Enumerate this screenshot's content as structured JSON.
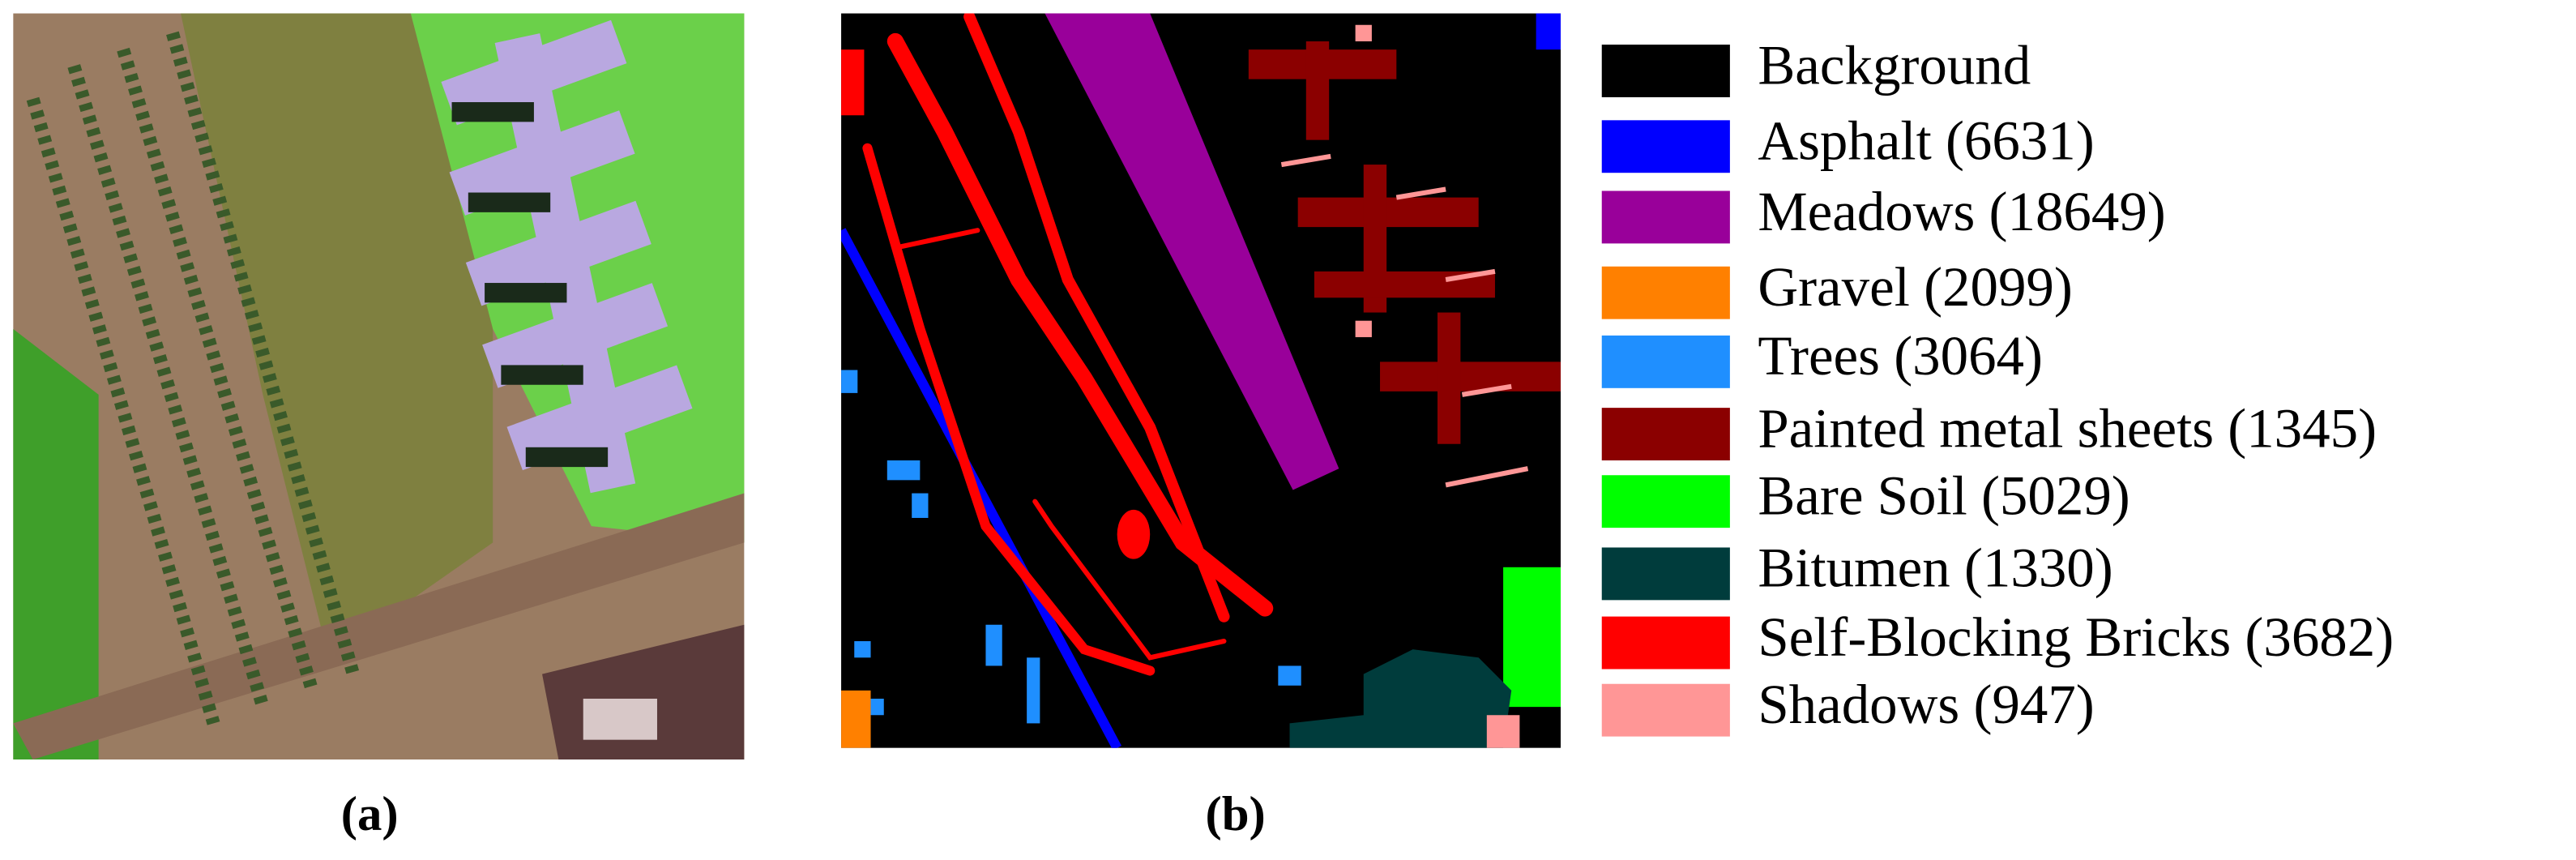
{
  "panels": [
    {
      "caption": "(a)"
    },
    {
      "caption": "(b)"
    }
  ],
  "legend": [
    {
      "label": "Background",
      "color": "#000000"
    },
    {
      "label": "Asphalt (6631)",
      "color": "#0000ff"
    },
    {
      "label": "Meadows (18649)",
      "color": "#99009a"
    },
    {
      "label": "Gravel (2099)",
      "color": "#ff8000"
    },
    {
      "label": "Trees (3064)",
      "color": "#1f8fff"
    },
    {
      "label": "Painted metal sheets (1345)",
      "color": "#8b0000"
    },
    {
      "label": "Bare Soil (5029)",
      "color": "#00ff00"
    },
    {
      "label": "Bitumen (1330)",
      "color": "#003c3c"
    },
    {
      "label": "Self-Blocking Bricks (3682)",
      "color": "#ff0000"
    },
    {
      "label": "Shadows (947)",
      "color": "#ff9696"
    }
  ]
}
